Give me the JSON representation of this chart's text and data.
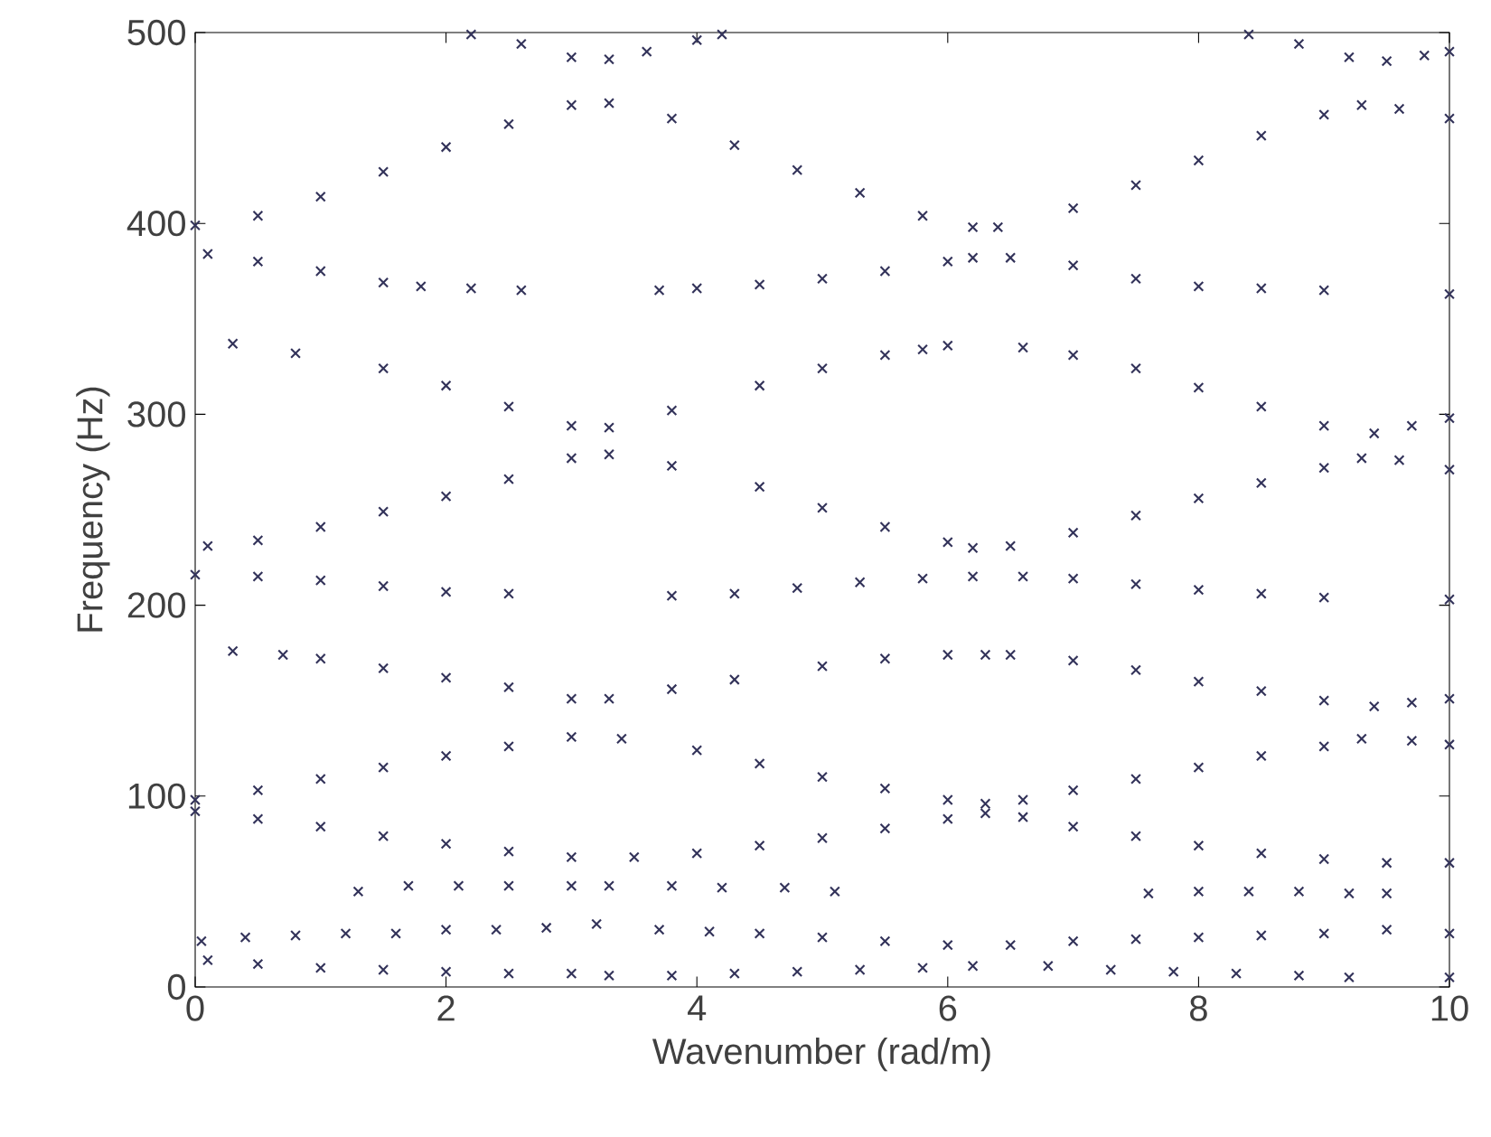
{
  "chart_data": {
    "type": "scatter",
    "xlabel": "Wavenumber (rad/m)",
    "ylabel": "Frequency (Hz)",
    "xlim": [
      0,
      10
    ],
    "ylim": [
      0,
      500
    ],
    "xticks": [
      0,
      2,
      4,
      6,
      8,
      10
    ],
    "yticks": [
      0,
      100,
      200,
      300,
      400,
      500
    ],
    "marker": "cross",
    "series": [
      {
        "color": "#33335a",
        "x": [
          0,
          0.5,
          1,
          1.5,
          2,
          2.5,
          3.0,
          3.3,
          3.8,
          4.3,
          4.8,
          5.3,
          5.8,
          6.2,
          6.4,
          7,
          7.5,
          8,
          8.5,
          9,
          9.3,
          9.6,
          10
        ],
        "values": [
          399,
          404,
          414,
          427,
          440,
          452,
          462,
          463,
          455,
          441,
          428,
          416,
          404,
          398,
          398,
          408,
          420,
          433,
          446,
          457,
          462,
          460,
          455
        ]
      },
      {
        "color": "#33335a",
        "x": [
          2.2,
          2.6,
          3.0,
          3.3,
          3.6,
          4.0,
          4.2,
          8.4,
          8.8,
          9.2,
          9.5,
          9.8,
          10
        ],
        "values": [
          499,
          494,
          487,
          486,
          490,
          496,
          499,
          499,
          494,
          487,
          485,
          488,
          490
        ]
      },
      {
        "color": "#33335a",
        "x": [
          0.1,
          0.5,
          1.0,
          1.5,
          1.8,
          2.2,
          2.6,
          3.7,
          4.0,
          4.5,
          5,
          5.5,
          6.0,
          6.2,
          6.5,
          7,
          7.5,
          8,
          8.5,
          9,
          10
        ],
        "values": [
          384,
          380,
          375,
          369,
          367,
          366,
          365,
          365,
          366,
          368,
          371,
          375,
          380,
          382,
          382,
          378,
          371,
          367,
          366,
          365,
          363
        ]
      },
      {
        "color": "#33335a",
        "x": [
          0.3,
          0.8,
          1.5,
          2,
          2.5,
          3.0,
          3.3,
          3.8,
          4.5,
          5,
          5.5,
          5.8,
          6.0,
          6.6,
          7,
          7.5,
          8,
          8.5,
          9,
          9.4,
          9.7,
          10
        ],
        "values": [
          337,
          332,
          324,
          315,
          304,
          294,
          293,
          302,
          315,
          324,
          331,
          334,
          336,
          335,
          331,
          324,
          314,
          304,
          294,
          290,
          294,
          298
        ]
      },
      {
        "color": "#33335a",
        "x": [
          0.1,
          0.5,
          1,
          1.5,
          2,
          2.5,
          3.0,
          3.3,
          3.8,
          4.5,
          5,
          5.5,
          6.0,
          6.2,
          6.5,
          7,
          7.5,
          8,
          8.5,
          9,
          9.3,
          9.6,
          10
        ],
        "values": [
          231,
          234,
          241,
          249,
          257,
          266,
          277,
          279,
          273,
          262,
          251,
          241,
          233,
          230,
          231,
          238,
          247,
          256,
          264,
          272,
          277,
          276,
          271
        ]
      },
      {
        "color": "#33335a",
        "x": [
          0,
          0.5,
          1,
          1.5,
          2,
          2.5,
          3.8,
          4.3,
          4.8,
          5.3,
          5.8,
          6.2,
          6.6,
          7,
          7.5,
          8,
          8.5,
          9,
          10
        ],
        "values": [
          216,
          215,
          213,
          210,
          207,
          206,
          205,
          206,
          209,
          212,
          214,
          215,
          215,
          214,
          211,
          208,
          206,
          204,
          203
        ]
      },
      {
        "color": "#33335a",
        "x": [
          0.3,
          0.7,
          1,
          1.5,
          2,
          2.5,
          3.0,
          3.3,
          3.8,
          4.3,
          5,
          5.5,
          6.0,
          6.3,
          6.5,
          7,
          7.5,
          8,
          8.5,
          9,
          9.4,
          9.7,
          10
        ],
        "values": [
          176,
          174,
          172,
          167,
          162,
          157,
          151,
          151,
          156,
          161,
          168,
          172,
          174,
          174,
          174,
          171,
          166,
          160,
          155,
          150,
          147,
          149,
          151
        ]
      },
      {
        "color": "#33335a",
        "x": [
          0,
          0.5,
          1,
          1.5,
          2,
          2.5,
          3.0,
          3.4,
          4,
          4.5,
          5,
          5.5,
          6,
          6.3,
          6.6,
          7,
          7.5,
          8,
          8.5,
          9,
          9.3,
          9.7,
          10
        ],
        "values": [
          98,
          103,
          109,
          115,
          121,
          126,
          131,
          130,
          124,
          117,
          110,
          104,
          98,
          96,
          98,
          103,
          109,
          115,
          121,
          126,
          130,
          129,
          127
        ]
      },
      {
        "color": "#33335a",
        "x": [
          0,
          0.5,
          1,
          1.5,
          2,
          2.5,
          3,
          3.5,
          4,
          4.5,
          5,
          5.5,
          6,
          6.3,
          6.6,
          7,
          7.5,
          8,
          8.5,
          9,
          9.5,
          10
        ],
        "values": [
          92,
          88,
          84,
          79,
          75,
          71,
          68,
          68,
          70,
          74,
          78,
          83,
          88,
          91,
          89,
          84,
          79,
          74,
          70,
          67,
          65,
          65
        ]
      },
      {
        "color": "#33335a",
        "x": [
          1.3,
          1.7,
          2.1,
          2.5,
          3.0,
          3.3,
          3.8,
          4.2,
          4.7,
          5.1,
          7.6,
          8.0,
          8.4,
          8.8,
          9.2,
          9.5
        ],
        "values": [
          50,
          53,
          53,
          53,
          53,
          53,
          53,
          52,
          52,
          50,
          49,
          50,
          50,
          50,
          49,
          49
        ]
      },
      {
        "color": "#33335a",
        "x": [
          0.05,
          0.4,
          0.8,
          1.2,
          1.6,
          2.0,
          2.4,
          2.8,
          3.2,
          3.7,
          4.1,
          4.5,
          5,
          5.5,
          6,
          6.5,
          7,
          7.5,
          8,
          8.5,
          9,
          9.5,
          10
        ],
        "values": [
          24,
          26,
          27,
          28,
          28,
          30,
          30,
          31,
          33,
          30,
          29,
          28,
          26,
          24,
          22,
          22,
          24,
          25,
          26,
          27,
          28,
          30,
          28
        ]
      },
      {
        "color": "#33335a",
        "x": [
          0.1,
          0.5,
          1,
          1.5,
          2,
          2.5,
          3,
          3.3,
          3.8,
          4.3,
          4.8,
          5.3,
          5.8,
          6.2,
          6.8,
          7.3,
          7.8,
          8.3,
          8.8,
          9.2,
          10
        ],
        "values": [
          14,
          12,
          10,
          9,
          8,
          7,
          7,
          6,
          6,
          7,
          8,
          9,
          10,
          11,
          11,
          9,
          8,
          7,
          6,
          5,
          5
        ]
      }
    ]
  }
}
